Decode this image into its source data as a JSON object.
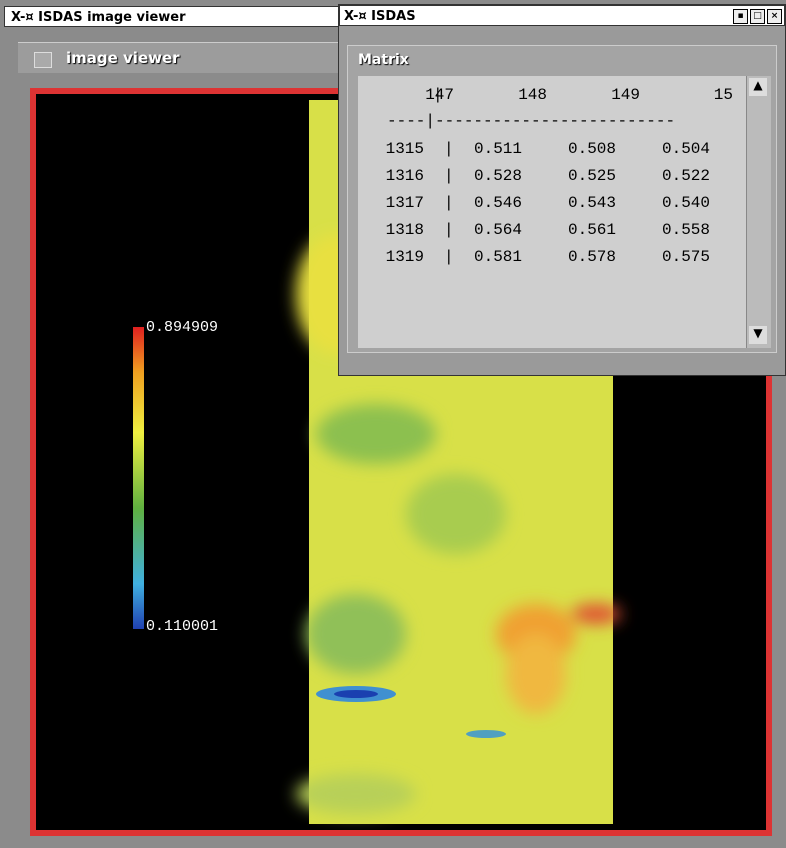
{
  "viewer_window": {
    "title": "ISDAS image viewer",
    "checkbox_label": "image viewer",
    "colorbar": {
      "max_label": "0.894909",
      "min_label": "0.110001"
    }
  },
  "matrix_window": {
    "title": "ISDAS",
    "panel_title": "Matrix",
    "table": {
      "columns": [
        "147",
        "148",
        "149",
        "15"
      ],
      "separator": "----|-------------------------",
      "rows": [
        [
          "1315",
          "0.511",
          "0.508",
          "0.504"
        ],
        [
          "1316",
          "0.528",
          "0.525",
          "0.522"
        ],
        [
          "1317",
          "0.546",
          "0.543",
          "0.540"
        ],
        [
          "1318",
          "0.564",
          "0.561",
          "0.558"
        ],
        [
          "1319",
          "0.581",
          "0.578",
          "0.575"
        ]
      ]
    }
  }
}
